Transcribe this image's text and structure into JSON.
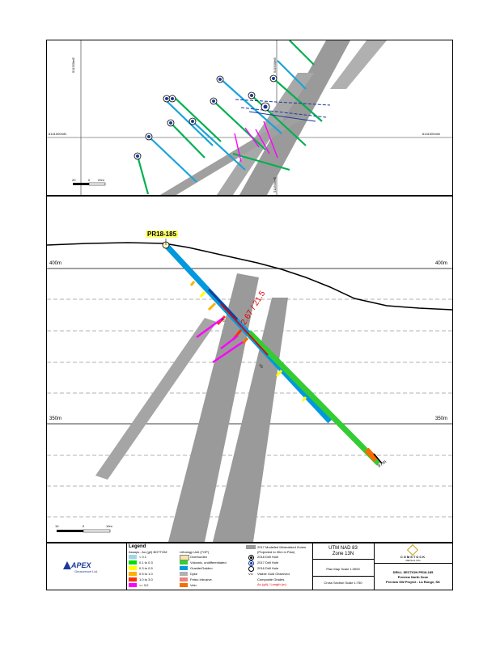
{
  "plan_map": {
    "grid_labels": {
      "e1": "511250mE",
      "e2": "511500mE",
      "n_left": "6141000mN",
      "n_right": "6141000mN",
      "e_bottom": "511500mE"
    },
    "scale_bar": {
      "l0": "20",
      "l1": "0",
      "l2": "20m"
    }
  },
  "section": {
    "hole_id": "PR18-185",
    "elev_400_left": "400m",
    "elev_400_right": "400m",
    "elev_350_left": "350m",
    "elev_350_right": "350m",
    "intercept": "2.67 / 21.5",
    "vg_label": "VG",
    "vg_label2": "VG",
    "end_depth": "97m",
    "scale_bar": {
      "l0": "10",
      "l1": "0",
      "l2": "10m"
    }
  },
  "legend": {
    "title": "Legend",
    "assays_title": "Assays - Au (g/t) BOTTOM",
    "assays": [
      {
        "label": "< 0.1",
        "color": "#9fd6e8"
      },
      {
        "label": "0.1 to 0.3",
        "color": "#00e000"
      },
      {
        "label": "0.3 to 0.5",
        "color": "#ffff00"
      },
      {
        "label": "0.5 to 1.0",
        "color": "#ffb000"
      },
      {
        "label": "1.0 to 3.0",
        "color": "#ff3000"
      },
      {
        "label": ">= 3.0",
        "color": "#ff00ff"
      }
    ],
    "litho_title": "Lithology Unit (TOP)",
    "litho": [
      {
        "label": "Overburden",
        "color": "#f5e6a8"
      },
      {
        "label": "Volcanic, undifferentiated",
        "color": "#33cc33"
      },
      {
        "label": "Granite/Gabbro",
        "color": "#0099dd"
      },
      {
        "label": "Dyke",
        "color": "#b0b0b0"
      },
      {
        "label": "Felsic Intrusive",
        "color": "#f08080"
      },
      {
        "label": "Vein",
        "color": "#f07000"
      }
    ],
    "zones_title": "2017 Modelled Mineralized Zones",
    "zones_sub": "(Projected to 30m in Plan)",
    "holes": [
      {
        "label": "2018 Drill Hole"
      },
      {
        "label": "2017 Drill Hole"
      },
      {
        "label": "2016 Drill Hole"
      }
    ],
    "vg_key": "VG",
    "vg_text": "Visible Gold Observed",
    "composite_title": "Composite Grades",
    "composite_sub": "Au (g/t) / Length (m)"
  },
  "utm": {
    "line1": "UTM NAD 83",
    "line2": "Zone 13N"
  },
  "plan_scale": "Plan Map Scale 1:3000",
  "section_scale": "Cross Section Scale 1:750",
  "apex": {
    "name": "APEX",
    "sub": "Geoscience Ltd."
  },
  "comstock": {
    "name": "COMSTOCK",
    "sub": "METALS LTD"
  },
  "title_block": {
    "line1": "DRILL SECTION PR18-185",
    "line2": "Preview North Zone",
    "line3": "Preview SW Project - La Ronge, SK"
  }
}
